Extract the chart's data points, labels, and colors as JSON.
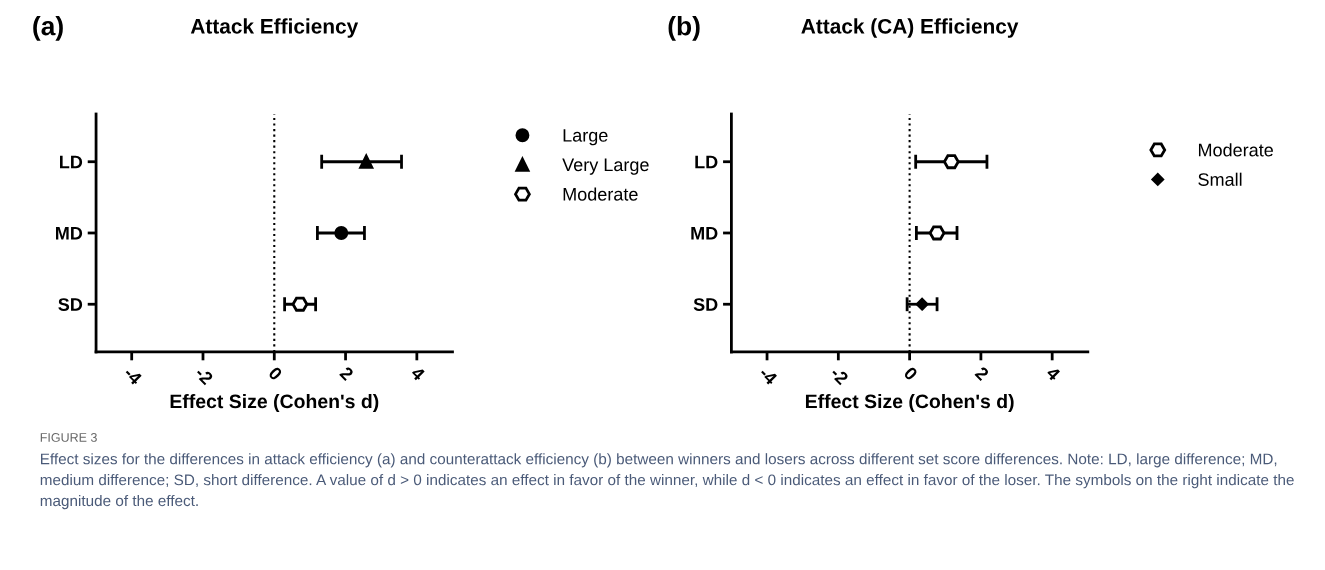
{
  "chart_data": [
    {
      "type": "scatter",
      "orientation": "horizontal",
      "title": "Attack Efficiency",
      "xlabel": "Effect Size (Cohen's d)",
      "categories": [
        "LD",
        "MD",
        "SD"
      ],
      "xlim": [
        -5,
        5
      ],
      "xticks": [
        -4,
        -2,
        0,
        2,
        4
      ],
      "grid": false,
      "legend": "right",
      "ref_lines": [
        {
          "axis": "x",
          "value": 0,
          "line_style": "dotted",
          "color": "#000000"
        }
      ],
      "annotations": [
        "(a)"
      ],
      "series": [
        {
          "name": "Large",
          "color": "#000000",
          "marker": "circle",
          "values": [
            null,
            1.88,
            null
          ],
          "errors": [
            null,
            [
              1.21,
              2.53
            ],
            null
          ]
        },
        {
          "name": "Very Large",
          "color": "#000000",
          "marker": "triangle",
          "values": [
            2.58,
            null,
            null
          ],
          "errors": [
            [
              1.33,
              3.57
            ],
            null,
            null
          ]
        },
        {
          "name": "Moderate",
          "color": "#000000",
          "values": [
            null,
            null,
            0.72
          ],
          "errors": [
            null,
            null,
            [
              0.29,
              1.16
            ]
          ]
        }
      ]
    },
    {
      "type": "scatter",
      "orientation": "horizontal",
      "title": "Attack (CA) Efficiency",
      "xlabel": "Effect Size (Cohen's d)",
      "categories": [
        "LD",
        "MD",
        "SD"
      ],
      "xlim": [
        -5,
        5
      ],
      "xticks": [
        -4,
        -2,
        0,
        2,
        4
      ],
      "grid": false,
      "legend": "right",
      "ref_lines": [
        {
          "axis": "x",
          "value": 0,
          "line_style": "dotted",
          "color": "#000000"
        }
      ],
      "annotations": [
        "(b)",
        "FIGURE 3",
        "Effect sizes for the differences in attack efficiency (a) and counterattack efficiency (b) between winners and losers across different set score differences. Note: LD, large difference; MD, medium difference; SD, short difference. A value of d > 0 indicates an effect in favor of the winner, while d < 0 indicates an effect in favor of the loser. The symbols on the right indicate the magnitude of the effect."
      ],
      "series": [
        {
          "name": "Moderate",
          "color": "#000000",
          "values": [
            1.17,
            0.77,
            null
          ],
          "errors": [
            [
              0.17,
              2.17
            ],
            [
              0.19,
              1.33
            ],
            null
          ]
        },
        {
          "name": "Small",
          "color": "#000000",
          "marker": "diamond",
          "values": [
            null,
            null,
            0.35
          ],
          "errors": [
            null,
            null,
            [
              -0.07,
              0.77
            ]
          ]
        }
      ]
    }
  ]
}
